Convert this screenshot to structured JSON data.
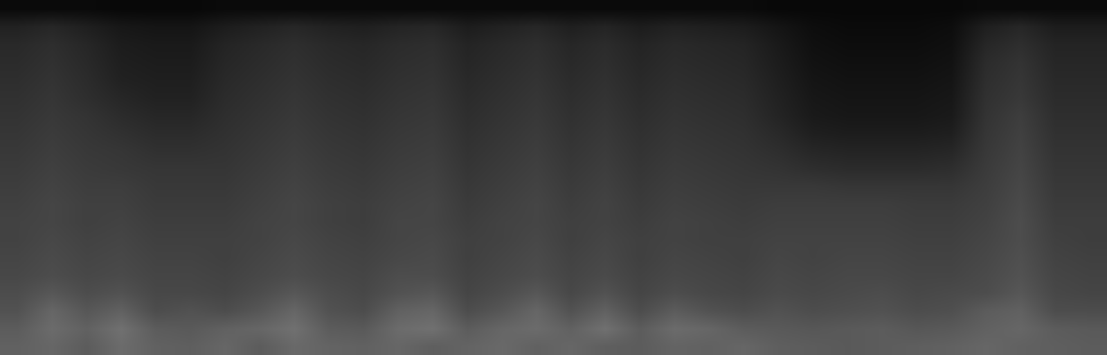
{
  "chart_data": {
    "type": "heatmap",
    "tick_labels": false,
    "grid": false,
    "xlim": [
      -0.5,
      31.5
    ],
    "ylim": [
      -0.5,
      19.5
    ],
    "zlim": [
      0,
      100
    ],
    "z": [
      [
        38,
        40,
        36,
        42,
        38,
        37,
        40,
        36,
        41,
        39,
        38,
        40,
        37,
        39,
        41,
        38,
        40,
        37,
        36,
        39,
        38,
        40,
        37,
        36,
        35,
        36,
        37,
        38,
        40,
        38,
        37,
        36
      ],
      [
        36,
        42,
        38,
        44,
        36,
        35,
        38,
        40,
        44,
        36,
        35,
        42,
        44,
        36,
        40,
        42,
        38,
        44,
        36,
        42,
        40,
        36,
        35,
        34,
        35,
        36,
        34,
        35,
        38,
        40,
        36,
        35
      ],
      [
        32,
        40,
        34,
        38,
        30,
        32,
        30,
        34,
        40,
        32,
        30,
        38,
        40,
        30,
        34,
        40,
        32,
        38,
        30,
        36,
        32,
        30,
        32,
        30,
        31,
        32,
        30,
        31,
        36,
        38,
        30,
        30
      ],
      [
        30,
        34,
        30,
        32,
        28,
        28,
        27,
        30,
        34,
        30,
        28,
        32,
        34,
        27,
        30,
        34,
        28,
        32,
        27,
        30,
        28,
        27,
        29,
        28,
        29,
        30,
        28,
        29,
        30,
        34,
        28,
        27
      ],
      [
        28,
        30,
        28,
        29,
        27,
        27,
        26,
        28,
        30,
        28,
        27,
        30,
        30,
        26,
        28,
        30,
        27,
        29,
        26,
        28,
        27,
        26,
        28,
        27,
        28,
        28,
        27,
        27,
        29,
        32,
        27,
        26
      ],
      [
        27,
        29,
        27,
        28,
        26,
        26,
        25,
        27,
        29,
        27,
        26,
        28,
        29,
        25,
        27,
        29,
        26,
        28,
        25,
        27,
        26,
        25,
        27,
        26,
        27,
        27,
        26,
        26,
        28,
        31,
        26,
        25
      ],
      [
        26,
        28,
        26,
        27,
        25,
        25,
        25,
        26,
        28,
        26,
        25,
        27,
        28,
        25,
        26,
        28,
        25,
        27,
        25,
        26,
        25,
        25,
        26,
        26,
        26,
        26,
        25,
        25,
        27,
        30,
        25,
        24
      ],
      [
        26,
        27,
        25,
        26,
        24,
        24,
        24,
        26,
        27,
        25,
        24,
        27,
        27,
        24,
        26,
        27,
        25,
        26,
        24,
        26,
        25,
        24,
        25,
        25,
        25,
        25,
        24,
        24,
        26,
        30,
        24,
        24
      ],
      [
        25,
        27,
        25,
        25,
        23,
        23,
        23,
        25,
        27,
        25,
        24,
        26,
        27,
        23,
        25,
        27,
        24,
        26,
        23,
        25,
        24,
        23,
        24,
        24,
        24,
        24,
        23,
        23,
        25,
        29,
        23,
        23
      ],
      [
        24,
        26,
        24,
        24,
        22,
        22,
        22,
        24,
        26,
        24,
        23,
        25,
        26,
        22,
        24,
        26,
        23,
        25,
        22,
        24,
        23,
        22,
        22,
        22,
        21,
        21,
        21,
        21,
        24,
        28,
        22,
        22
      ],
      [
        23,
        25,
        23,
        22,
        21,
        21,
        21,
        23,
        25,
        23,
        22,
        24,
        25,
        21,
        23,
        25,
        22,
        24,
        21,
        23,
        22,
        21,
        20,
        18,
        17,
        17,
        17,
        18,
        23,
        27,
        21,
        21
      ],
      [
        22,
        24,
        22,
        21,
        19,
        19,
        20,
        22,
        24,
        22,
        21,
        23,
        24,
        20,
        22,
        24,
        21,
        23,
        20,
        22,
        21,
        20,
        18,
        15,
        14,
        14,
        14,
        15,
        22,
        26,
        20,
        20
      ],
      [
        21,
        23,
        21,
        19,
        17,
        17,
        19,
        21,
        23,
        21,
        20,
        22,
        23,
        19,
        21,
        23,
        20,
        22,
        19,
        21,
        20,
        19,
        16,
        12,
        11,
        11,
        11,
        12,
        21,
        25,
        19,
        19
      ],
      [
        20,
        22,
        20,
        17,
        15,
        15,
        18,
        20,
        22,
        20,
        19,
        21,
        22,
        18,
        20,
        22,
        19,
        21,
        18,
        20,
        19,
        18,
        14,
        10,
        9,
        9,
        9,
        10,
        20,
        24,
        18,
        18
      ],
      [
        19,
        21,
        18,
        15,
        13,
        13,
        17,
        19,
        21,
        19,
        18,
        20,
        21,
        17,
        19,
        21,
        18,
        20,
        17,
        19,
        18,
        17,
        13,
        9,
        8,
        8,
        8,
        9,
        19,
        22,
        17,
        17
      ],
      [
        18,
        20,
        17,
        13,
        12,
        12,
        16,
        18,
        20,
        18,
        17,
        19,
        20,
        16,
        18,
        20,
        17,
        19,
        16,
        18,
        17,
        16,
        12,
        8,
        7,
        7,
        7,
        8,
        18,
        21,
        16,
        16
      ],
      [
        17,
        19,
        16,
        12,
        11,
        11,
        15,
        17,
        19,
        17,
        16,
        18,
        19,
        15,
        17,
        19,
        16,
        18,
        15,
        17,
        16,
        15,
        11,
        7,
        6,
        6,
        6,
        7,
        17,
        20,
        15,
        15
      ],
      [
        16,
        18,
        15,
        11,
        10,
        10,
        14,
        16,
        18,
        16,
        15,
        17,
        18,
        14,
        16,
        18,
        15,
        17,
        14,
        16,
        15,
        14,
        10,
        6,
        5,
        5,
        5,
        6,
        15,
        18,
        14,
        14
      ],
      [
        13,
        15,
        12,
        9,
        8,
        8,
        11,
        13,
        15,
        13,
        12,
        14,
        15,
        11,
        13,
        15,
        12,
        14,
        11,
        13,
        12,
        11,
        8,
        5,
        4,
        4,
        4,
        5,
        12,
        15,
        11,
        11
      ],
      [
        4,
        4,
        4,
        3,
        3,
        3,
        4,
        4,
        4,
        4,
        4,
        4,
        4,
        4,
        4,
        4,
        4,
        4,
        4,
        4,
        4,
        4,
        3,
        3,
        3,
        3,
        3,
        3,
        4,
        4,
        4,
        4
      ]
    ]
  }
}
